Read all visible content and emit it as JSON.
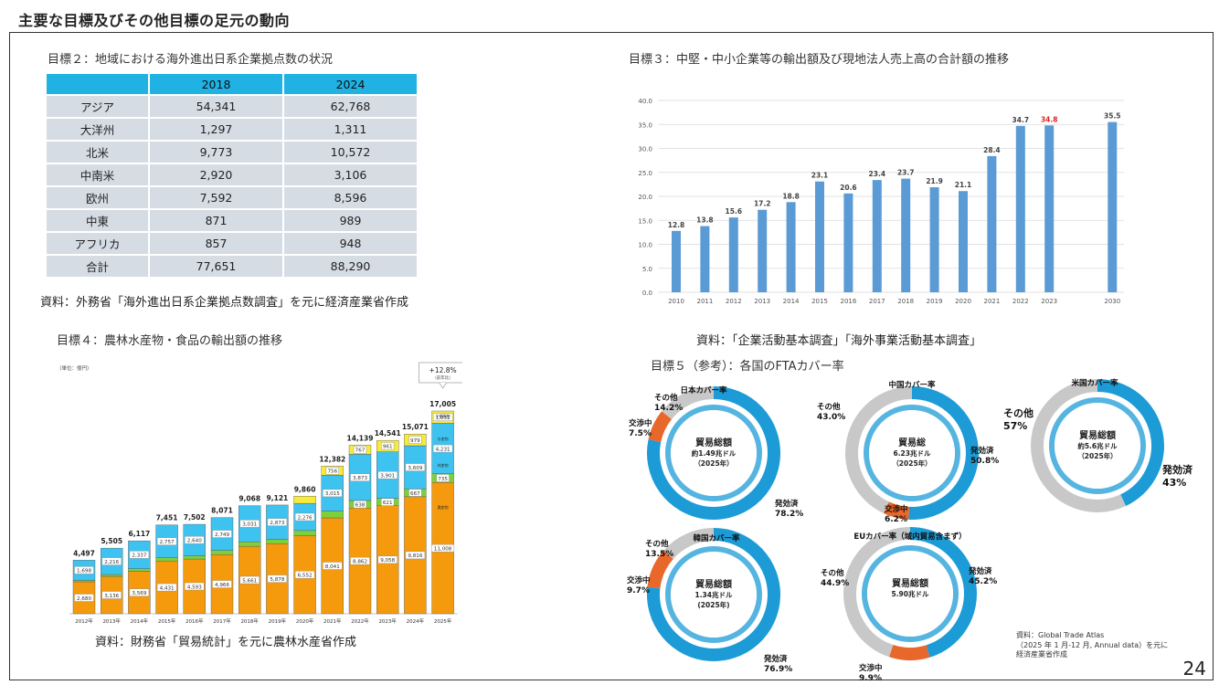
{
  "header": {
    "title": "主要な目標及びその他目標の足元の動向"
  },
  "goal2": {
    "title": "目標２：地域における海外進出日系企業拠点数の状況",
    "columns": [
      "",
      "2018",
      "2024"
    ],
    "rows": [
      [
        "アジア",
        "54,341",
        "62,768"
      ],
      [
        "大洋州",
        "1,297",
        "1,311"
      ],
      [
        "北米",
        "9,773",
        "10,572"
      ],
      [
        "中南米",
        "2,920",
        "3,106"
      ],
      [
        "欧州",
        "7,592",
        "8,596"
      ],
      [
        "中東",
        "871",
        "989"
      ],
      [
        "アフリカ",
        "857",
        "948"
      ],
      [
        "合計",
        "77,651",
        "88,290"
      ]
    ],
    "source": "資料：外務省「海外進出日系企業拠点数調査」を元に経済産業省作成"
  },
  "goal3": {
    "title": "目標３：中堅・中小企業等の輸出額及び現地法人売上高の合計額の推移",
    "source": "資料：「企業活動基本調査」「海外事業活動基本調査」"
  },
  "goal4": {
    "title": "目標４：農林水産物・食品の輸出額の推移",
    "source": "資料：財務省「貿易統計」を元に農林水産省作成",
    "unit": "（単位：億円）",
    "callout": "+12.8%",
    "callout_sub": "（前年比）",
    "seg_labels": [
      "少額貨物",
      "水産物",
      "林産物",
      "農産物"
    ]
  },
  "goal5": {
    "title": "目標５（参考）：各国のFTAカバー率",
    "source_lines": [
      "資料：Global Trade Atlas",
      "（2025 年 1 月-12 月, Annual data）を元に",
      "経済産業省作成"
    ],
    "donuts": [
      {
        "title": "日本カバー率",
        "center": [
          "貿易総額",
          "約1.49兆ドル",
          "（2025年）"
        ],
        "labels": [
          [
            "その他",
            "14.2%"
          ],
          [
            "交渉中",
            "7.5%"
          ],
          [
            "発効済",
            "78.2%"
          ]
        ],
        "shares": [
          78.2,
          7.5,
          14.2
        ]
      },
      {
        "title": "中国カバー率",
        "center": [
          "貿易総",
          "6.23兆ドル",
          "（2025年）"
        ],
        "labels": [
          [
            "その他",
            "43.0%"
          ],
          [
            "交渉中",
            "6.2%"
          ],
          [
            "発効済",
            "50.8%"
          ]
        ],
        "shares": [
          50.8,
          6.2,
          43.0
        ]
      },
      {
        "title": "米国カバー率",
        "center": [
          "貿易総額",
          "約5.6兆ドル",
          "（2025年）"
        ],
        "labels": [
          [
            "その他",
            "57%"
          ],
          [
            "発効済",
            "43%"
          ]
        ],
        "shares": [
          43,
          0,
          57
        ]
      },
      {
        "title": "韓国カバー率",
        "center": [
          "貿易総額",
          "1.34兆ドル",
          "(2025年)"
        ],
        "labels": [
          [
            "その他",
            "13.5%"
          ],
          [
            "交渉中",
            "9.7%"
          ],
          [
            "発効済",
            "76.9%"
          ]
        ],
        "shares": [
          76.9,
          9.7,
          13.5
        ]
      },
      {
        "title": "EUカバー率（域内貿易含まず）",
        "center": [
          "貿易総額",
          "5.90兆ドル",
          ""
        ],
        "labels": [
          [
            "その他",
            "44.9%"
          ],
          [
            "交渉中",
            "9.9%"
          ],
          [
            "発効済",
            "45.2%"
          ]
        ],
        "shares": [
          45.2,
          9.9,
          44.9
        ]
      }
    ],
    "colors": {
      "effective": "#1c9bd6",
      "negotiating": "#e8672a",
      "other": "#c8c8c8"
    }
  },
  "page_number": "24",
  "chart_data": [
    {
      "type": "bar",
      "categories": [
        "2010",
        "2011",
        "2012",
        "2013",
        "2014",
        "2015",
        "2016",
        "2017",
        "2018",
        "2019",
        "2020",
        "2021",
        "2022",
        "2023",
        "2030"
      ],
      "values": [
        12.8,
        13.8,
        15.6,
        17.2,
        18.8,
        23.1,
        20.6,
        23.4,
        23.7,
        21.9,
        21.1,
        28.4,
        34.7,
        34.8,
        35.5
      ],
      "value_labels": [
        "12.8",
        "13.8",
        "15.6",
        "17.2",
        "18.8",
        "23.1",
        "20.6",
        "23.4",
        "23.7",
        "21.9",
        "21.1",
        "28.4",
        "34.7",
        "34.8",
        "35.5"
      ],
      "yticks": [
        "0.0",
        "5.0",
        "10.0",
        "15.0",
        "20.0",
        "25.0",
        "30.0",
        "35.0",
        "40.0"
      ],
      "ylim": [
        0,
        40
      ],
      "grid": true,
      "highlight": {
        "index": 13,
        "color": "#e02020"
      },
      "color": "#5b9bd5"
    },
    {
      "type": "bar",
      "stacked": true,
      "categories": [
        "2012年",
        "2013年",
        "2014年",
        "2015年",
        "2016年",
        "2017年",
        "2018年",
        "2019年",
        "2020年",
        "2021年",
        "2022年",
        "2023年",
        "2024年",
        "2025年"
      ],
      "totals": [
        4497,
        5505,
        6117,
        7451,
        7502,
        8071,
        9068,
        9121,
        9860,
        12382,
        14139,
        14541,
        15071,
        17005
      ],
      "total_labels": [
        "4,497",
        "5,505",
        "6,117",
        "7,451",
        "7,502",
        "8,071",
        "9,068",
        "9,121",
        "9,860",
        "12,382",
        "14,139",
        "14,541",
        "15,071",
        "17,005"
      ],
      "series": [
        {
          "name": "農産物",
          "color": "#f59a0c",
          "values": [
            2680,
            3136,
            3569,
            4431,
            4593,
            4966,
            5661,
            5878,
            6552,
            8041,
            8862,
            9058,
            9816,
            11008
          ],
          "labels": [
            "2,680",
            "3,136",
            "3,569",
            "4,431",
            "4,593",
            "4,966",
            "5,661",
            "5,878",
            "6,552",
            "8,041",
            "8,862",
            "9,058",
            "9,816",
            "11,008"
          ]
        },
        {
          "name": "林産物",
          "color": "#7cd13b",
          "values": [
            118,
            152,
            211,
            263,
            268,
            355,
            376,
            370,
            429,
            570,
            638,
            621,
            667,
            735
          ],
          "labels": [
            "118",
            "152",
            "211",
            "263",
            "268",
            "355",
            "376",
            "370",
            "429",
            "570",
            "638",
            "621",
            "667",
            "735"
          ]
        },
        {
          "name": "水産物",
          "color": "#3ec2ef",
          "values": [
            1698,
            2216,
            2337,
            2757,
            2640,
            2749,
            3031,
            2873,
            2276,
            3015,
            3873,
            3901,
            3609,
            4231
          ],
          "labels": [
            "1,698",
            "2,216",
            "2,337",
            "2,757",
            "2,640",
            "2,749",
            "3,031",
            "2,873",
            "2,276",
            "3,015",
            "3,873",
            "3,901",
            "3,609",
            "4,231"
          ]
        },
        {
          "name": "少額貨物",
          "color": "#f7ea3a",
          "values": [
            0,
            0,
            0,
            0,
            0,
            0,
            0,
            0,
            604,
            756,
            767,
            961,
            979,
            1031
          ],
          "labels": [
            "",
            "",
            "",
            "",
            "",
            "",
            "",
            "",
            "604",
            "756",
            "767",
            "961",
            "979",
            "1,031"
          ]
        }
      ]
    }
  ]
}
